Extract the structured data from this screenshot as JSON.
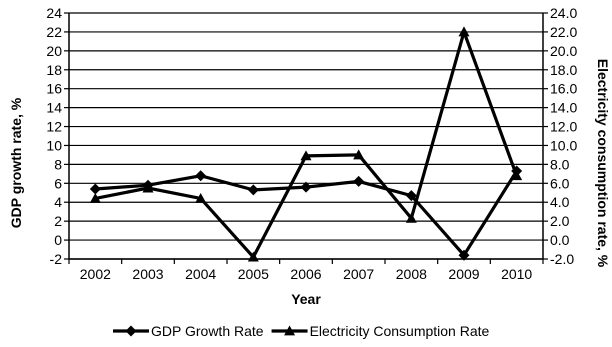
{
  "chart_data": {
    "type": "line",
    "title": "",
    "xlabel": "Year",
    "ylabel": "GDP growth rate, %",
    "y2label": "Electricity consumption rate, %",
    "x": [
      "2002",
      "2003",
      "2004",
      "2005",
      "2006",
      "2007",
      "2008",
      "2009",
      "2010"
    ],
    "ylim": [
      -2,
      24
    ],
    "y2lim": [
      -2.0,
      24.0
    ],
    "yticks": [
      "-2",
      "0",
      "2",
      "4",
      "6",
      "8",
      "10",
      "12",
      "14",
      "16",
      "18",
      "20",
      "22",
      "24"
    ],
    "y2ticks": [
      "-2.0",
      "0.0",
      "2.0",
      "4.0",
      "6.0",
      "8.0",
      "10.0",
      "12.0",
      "14.0",
      "16.0",
      "18.0",
      "20.0",
      "22.0",
      "24.0"
    ],
    "grid": true,
    "legend_position": "bottom",
    "series": [
      {
        "name": "GDP Growth Rate",
        "marker": "diamond",
        "axis": "left",
        "values": [
          5.4,
          5.8,
          6.8,
          5.3,
          5.6,
          6.2,
          4.7,
          -1.6,
          7.3
        ]
      },
      {
        "name": "Electricity Consumption Rate",
        "marker": "triangle",
        "axis": "right",
        "values": [
          4.4,
          5.5,
          4.4,
          -1.8,
          8.9,
          9.0,
          2.3,
          22.0,
          6.8
        ]
      }
    ],
    "colors": {
      "line": "#000000",
      "grid": "#000000"
    }
  }
}
